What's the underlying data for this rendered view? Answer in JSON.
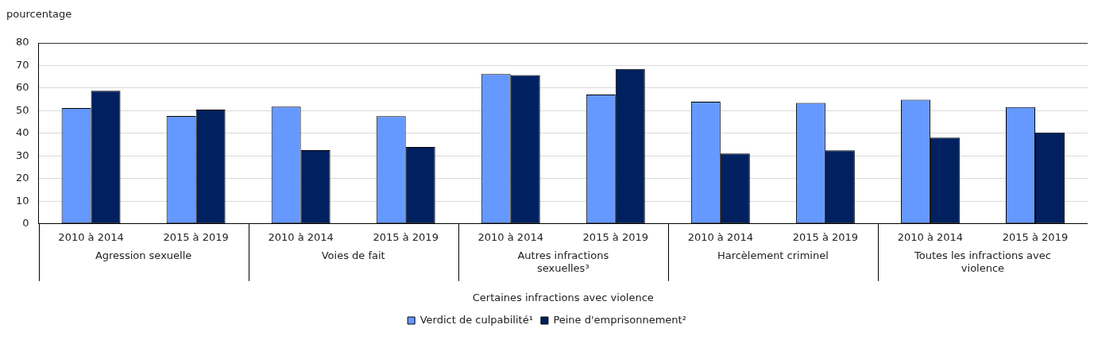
{
  "chart_data": {
    "type": "bar",
    "ylabel": "pourcentage",
    "xlabel": "Certaines infractions avec violence",
    "categories": [
      "2010 à 2014",
      "2015 à 2019",
      "2010 à 2014",
      "2015 à 2019",
      "2010 à 2014",
      "2015 à 2019",
      "2010 à 2014",
      "2015 à 2019",
      "2010 à 2014",
      "2015 à 2019"
    ],
    "annotations": [
      "Agression sexuelle",
      "Voies de fait",
      "Autres infractions sexuelles³",
      "Harcèlement criminel",
      "Toutes les infractions avec violence"
    ],
    "series": [
      {
        "name": "Verdict de culpabilité¹",
        "color": "#6699ff",
        "values": [
          51.2,
          47.7,
          51.8,
          47.6,
          66.2,
          57.2,
          54.0,
          53.5,
          54.9,
          51.6
        ]
      },
      {
        "name": "Peine d'emprisonnement²",
        "color": "#002060",
        "values": [
          58.8,
          50.5,
          32.6,
          34.0,
          65.8,
          68.5,
          31.1,
          32.5,
          38.1,
          40.4
        ]
      }
    ],
    "ylim": [
      0,
      80
    ],
    "yticks": [
      0,
      10,
      20,
      30,
      40,
      50,
      60,
      70,
      80
    ],
    "grid": "y",
    "legend": "bottom"
  }
}
